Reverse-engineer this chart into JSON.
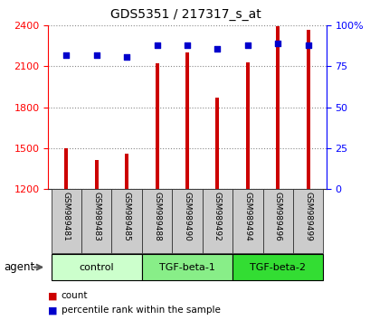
{
  "title": "GDS5351 / 217317_s_at",
  "samples": [
    "GSM989481",
    "GSM989483",
    "GSM989485",
    "GSM989488",
    "GSM989490",
    "GSM989492",
    "GSM989494",
    "GSM989496",
    "GSM989499"
  ],
  "counts": [
    1500,
    1410,
    1460,
    2120,
    2200,
    1870,
    2130,
    2395,
    2370
  ],
  "percentile_ranks": [
    82,
    82,
    81,
    88,
    88,
    86,
    88,
    89,
    88
  ],
  "groups": [
    {
      "label": "control",
      "indices": [
        0,
        1,
        2
      ],
      "color": "#ccffcc"
    },
    {
      "label": "TGF-beta-1",
      "indices": [
        3,
        4,
        5
      ],
      "color": "#88ee88"
    },
    {
      "label": "TGF-beta-2",
      "indices": [
        6,
        7,
        8
      ],
      "color": "#33dd33"
    }
  ],
  "bar_color": "#cc0000",
  "dot_color": "#0000cc",
  "ylim_left": [
    1200,
    2400
  ],
  "ylim_right": [
    0,
    100
  ],
  "yticks_left": [
    1200,
    1500,
    1800,
    2100,
    2400
  ],
  "yticks_right": [
    0,
    25,
    50,
    75,
    100
  ],
  "ytick_labels_right": [
    "0",
    "25",
    "50",
    "75",
    "100%"
  ],
  "grid_color": "#888888",
  "bg_color": "#ffffff",
  "plot_bg": "#ffffff",
  "bar_width": 0.12,
  "agent_label": "agent",
  "sample_box_color": "#cccccc",
  "sample_box_border": "#333333"
}
